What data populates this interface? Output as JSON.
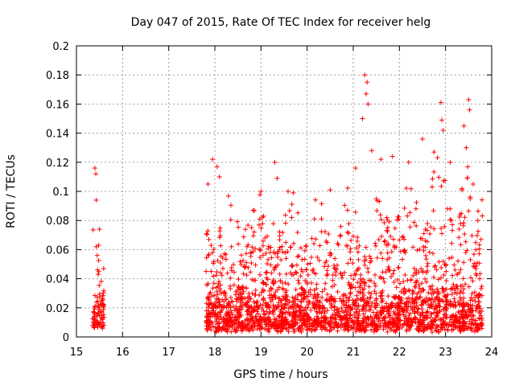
{
  "chart_data": {
    "type": "scatter",
    "title": "Day 047 of 2015, Rate Of TEC Index for receiver helg",
    "xlabel": "GPS time / hours",
    "ylabel": "ROTI / TECUs",
    "xlim": [
      15,
      24
    ],
    "ylim": [
      0,
      0.2
    ],
    "x_ticks": [
      "15",
      "16",
      "17",
      "18",
      "19",
      "20",
      "21",
      "22",
      "23",
      "24"
    ],
    "y_ticks": [
      "0",
      "0.02",
      "0.04",
      "0.06",
      "0.08",
      "0.1",
      "0.12",
      "0.14",
      "0.16",
      "0.18",
      "0.2"
    ],
    "grid": true,
    "marker": "+",
    "color": "#ff0000",
    "clusters": [
      {
        "x_range": [
          15.35,
          15.6
        ],
        "baseline": [
          0.005,
          0.035
        ],
        "peaks": [
          [
            15.4,
            0.116
          ],
          [
            15.42,
            0.112
          ],
          [
            15.43,
            0.094
          ],
          [
            15.5,
            0.074
          ],
          [
            15.48,
            0.063
          ],
          [
            15.45,
            0.056
          ],
          [
            15.47,
            0.043
          ]
        ]
      },
      {
        "x_range": [
          17.8,
          23.8
        ],
        "baseline": [
          0.003,
          0.035
        ]
      }
    ],
    "notable_points": [
      [
        17.85,
        0.105
      ],
      [
        17.95,
        0.122
      ],
      [
        18.05,
        0.117
      ],
      [
        18.1,
        0.11
      ],
      [
        19.3,
        0.12
      ],
      [
        19.35,
        0.109
      ],
      [
        19.0,
        0.1
      ],
      [
        19.7,
        0.099
      ],
      [
        20.5,
        0.101
      ],
      [
        21.05,
        0.116
      ],
      [
        21.25,
        0.18
      ],
      [
        21.3,
        0.175
      ],
      [
        21.28,
        0.167
      ],
      [
        21.32,
        0.16
      ],
      [
        21.2,
        0.15
      ],
      [
        21.4,
        0.128
      ],
      [
        21.6,
        0.122
      ],
      [
        21.85,
        0.124
      ],
      [
        22.2,
        0.12
      ],
      [
        22.5,
        0.136
      ],
      [
        22.75,
        0.127
      ],
      [
        22.9,
        0.161
      ],
      [
        22.92,
        0.149
      ],
      [
        22.95,
        0.142
      ],
      [
        23.1,
        0.12
      ],
      [
        23.4,
        0.145
      ],
      [
        23.45,
        0.13
      ],
      [
        23.5,
        0.163
      ],
      [
        23.52,
        0.156
      ],
      [
        23.6,
        0.105
      ],
      [
        23.7,
        0.08
      ]
    ]
  }
}
